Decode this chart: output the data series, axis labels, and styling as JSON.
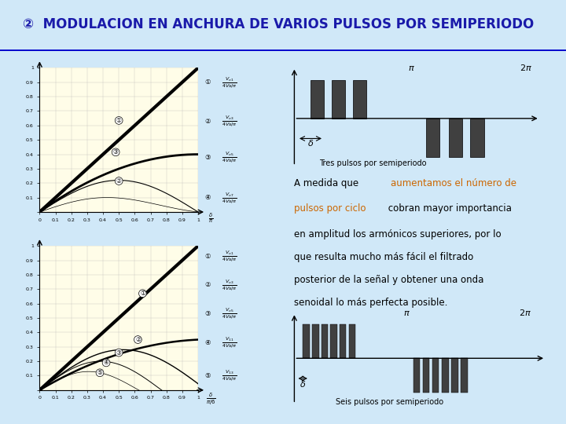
{
  "title": "②  MODULACION EN ANCHURA DE VARIOS PULSOS POR SEMIPERIODO",
  "title_color": "#1a1aaa",
  "title_bg": "#a0c8e8",
  "bg_color": "#fffde8",
  "slide_bg": "#d0e8f8",
  "highlight_color": "#cc6600",
  "text_color": "#000000",
  "xticks_top": [
    0.0,
    0.1,
    0.2,
    0.3,
    0.4,
    0.5,
    0.6,
    0.7,
    0.8,
    0.9,
    1.0
  ],
  "xtick_labels_top": [
    "0",
    "0.1",
    "0.2",
    "0.3",
    "0.4",
    "0.5",
    "0.6",
    "0.7",
    "0.8",
    "0.9",
    "1"
  ],
  "yticks": [
    0.0,
    0.1,
    0.2,
    0.3,
    0.4,
    0.5,
    0.6,
    0.7,
    0.8,
    0.9,
    1.0
  ],
  "ytick_labels": [
    "",
    "0.1",
    "0.2",
    "0.3",
    "0.4",
    "0.5",
    "0.6",
    "0.7",
    "0.8",
    "0.9",
    "1"
  ],
  "xticks_bot": [
    0.0,
    0.1,
    0.2,
    0.3,
    0.4,
    0.5,
    0.6,
    0.7,
    0.8,
    0.9,
    1.0
  ],
  "xtick_labels_bot": [
    "0",
    "0.1",
    "0.2",
    "0.3",
    "0.4",
    "0.5",
    "0.6",
    "0.7",
    "0.8",
    "0.9",
    "1"
  ]
}
